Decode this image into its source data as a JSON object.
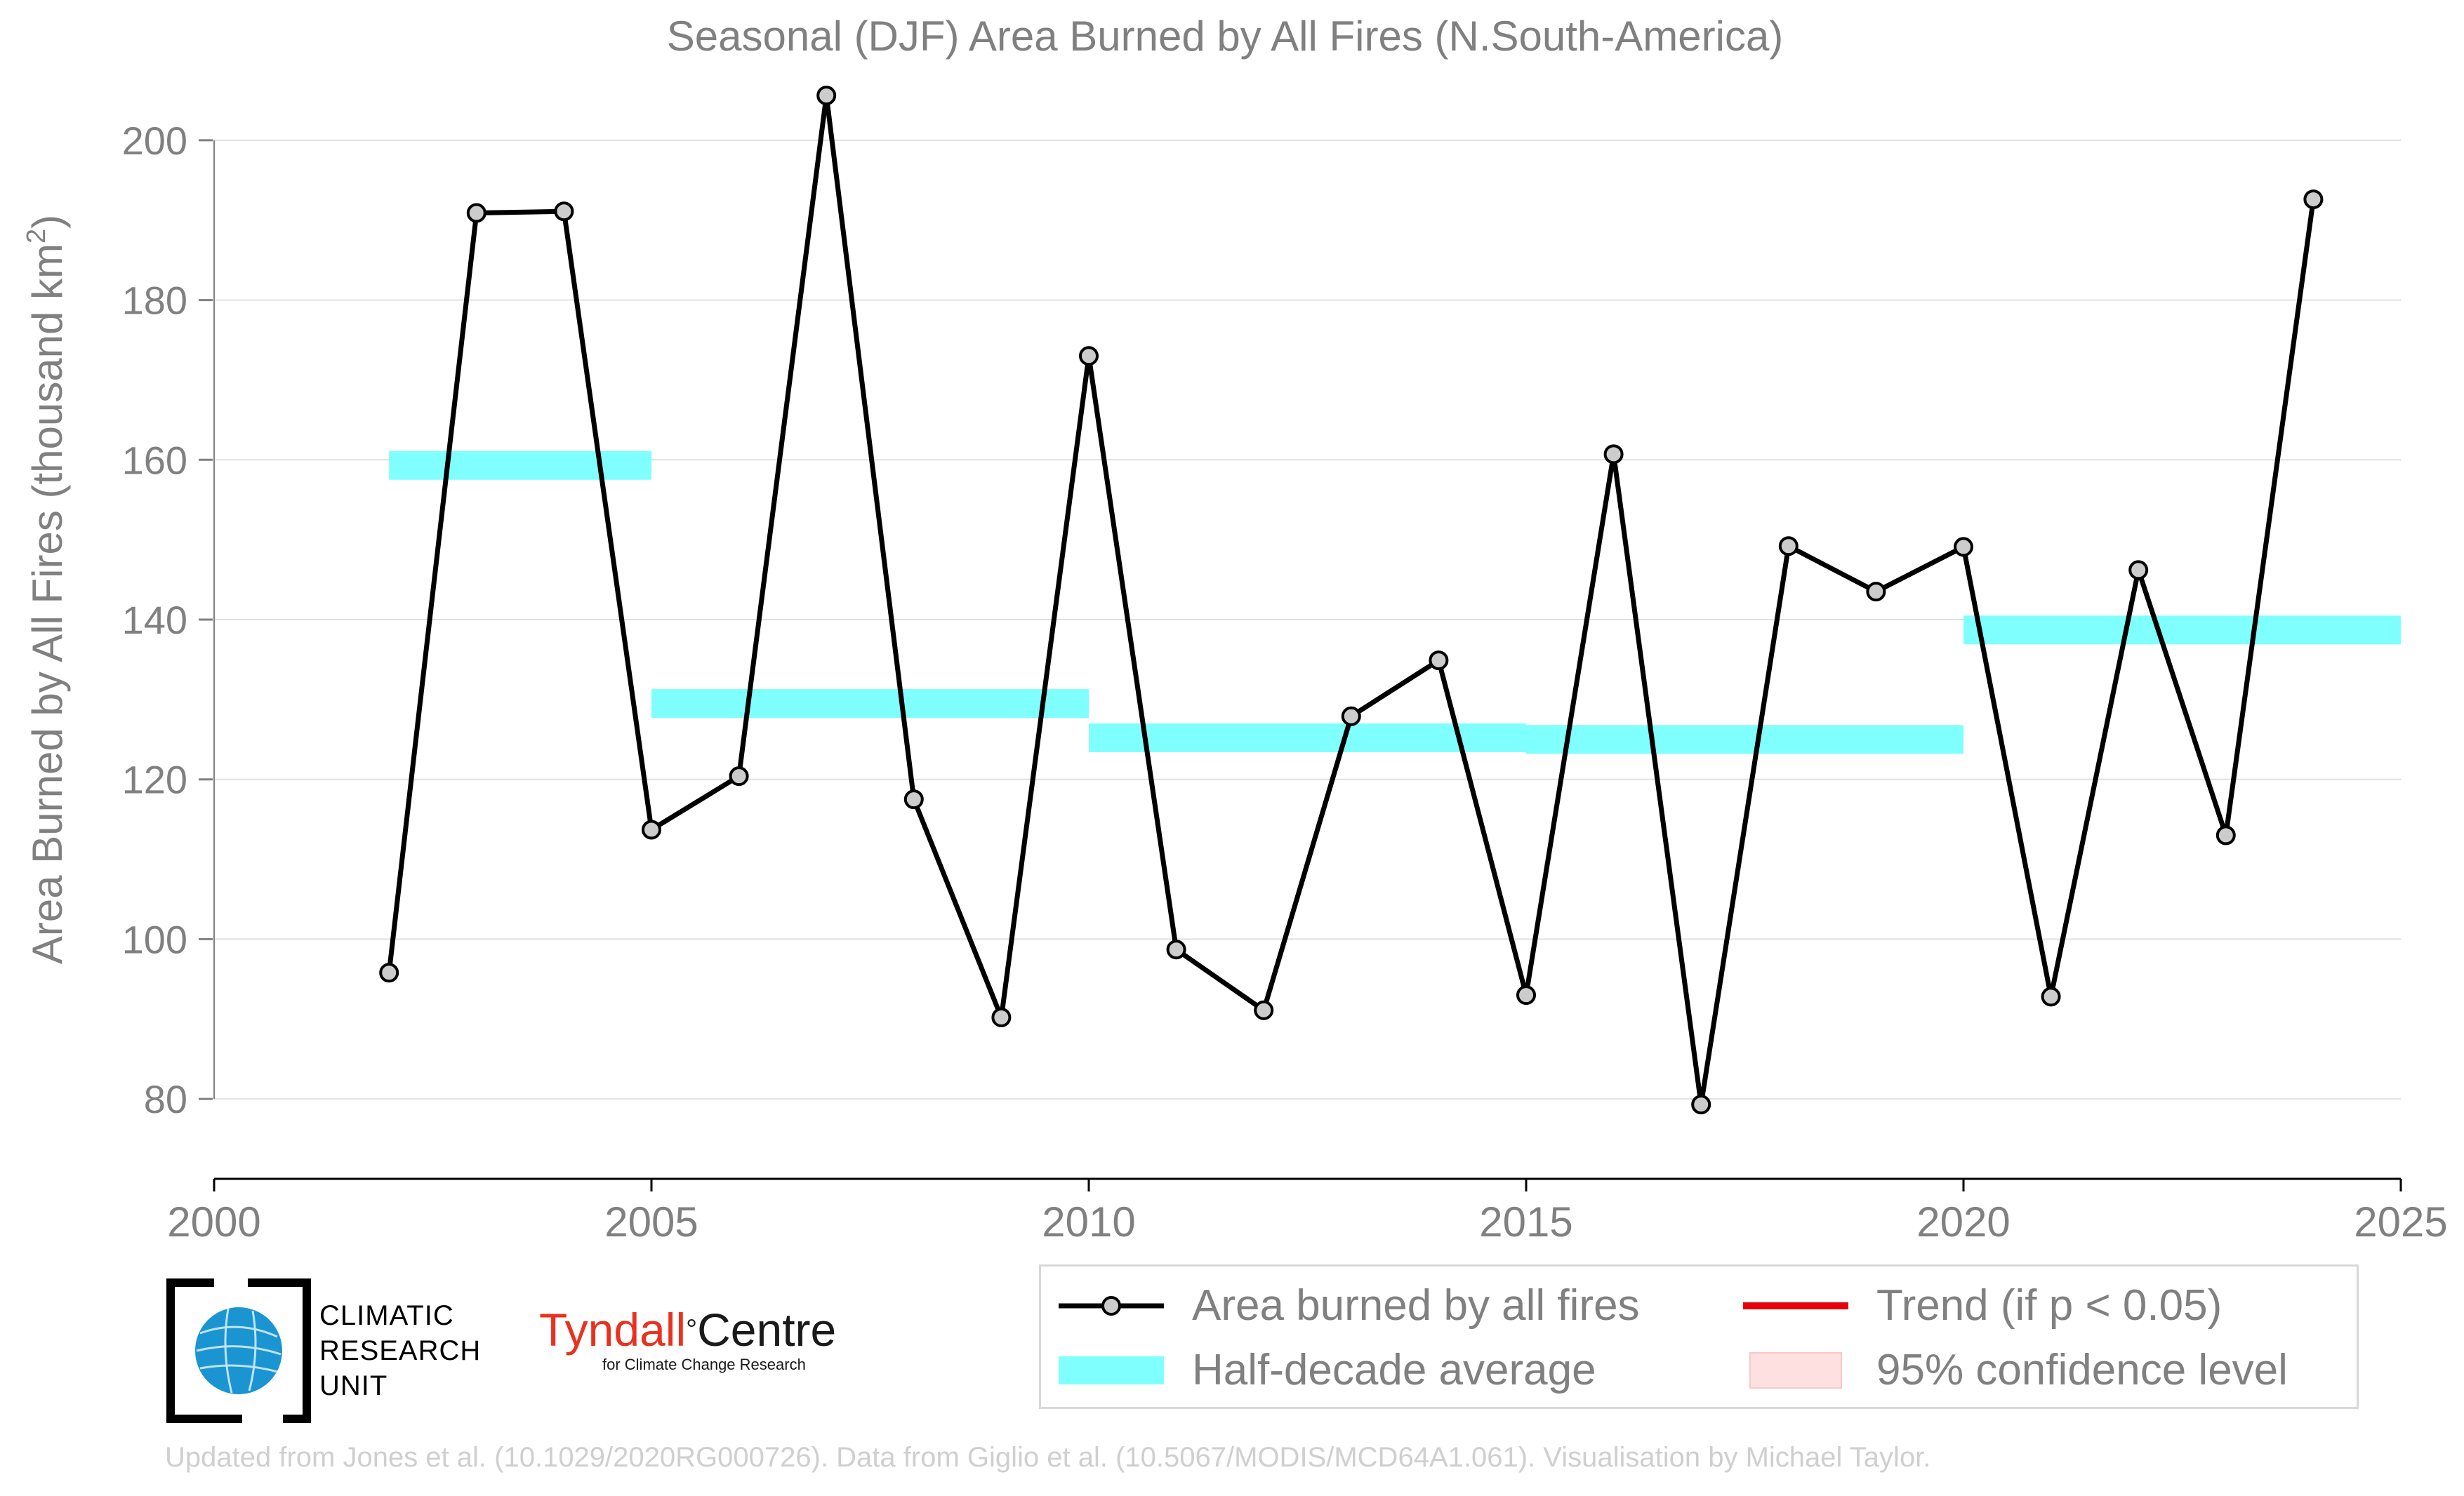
{
  "chart_data": {
    "type": "line",
    "title": "Seasonal (DJF) Area Burned by All Fires (N.South-America)",
    "ylabel": "Area Burned by All Fires (thousand km",
    "ylabel_sup": "2",
    "ylabel_close": ")",
    "xlim": [
      2000,
      2025
    ],
    "ylim": [
      70,
      210
    ],
    "xticks": [
      2000,
      2005,
      2010,
      2015,
      2020,
      2025
    ],
    "yticks": [
      80,
      100,
      120,
      140,
      160,
      180,
      200
    ],
    "grid": "horizontal",
    "series": [
      {
        "name": "Area burned by all fires",
        "color": "#000000",
        "marker_fill": "#cccccc",
        "x": [
          2002,
          2003,
          2004,
          2005,
          2006,
          2007,
          2008,
          2009,
          2010,
          2011,
          2012,
          2013,
          2014,
          2015,
          2016,
          2017,
          2018,
          2019,
          2020,
          2021,
          2022,
          2023,
          2024
        ],
        "y": [
          95.8,
          190.9,
          191.1,
          113.7,
          120.4,
          205.6,
          117.5,
          90.2,
          173.0,
          98.7,
          91.1,
          127.9,
          134.9,
          93.0,
          160.7,
          79.3,
          149.2,
          143.5,
          149.1,
          92.8,
          146.2,
          113.0,
          192.6
        ]
      }
    ],
    "half_decade": {
      "name": "Half-decade average",
      "color": "#80ffff",
      "segments": [
        {
          "x0": 2002,
          "x1": 2005,
          "y": 159.3
        },
        {
          "x0": 2005,
          "x1": 2010,
          "y": 129.5
        },
        {
          "x0": 2010,
          "x1": 2015,
          "y": 125.2
        },
        {
          "x0": 2015,
          "x1": 2020,
          "y": 125.0
        },
        {
          "x0": 2020,
          "x1": 2025,
          "y": 138.7
        }
      ]
    },
    "legend": {
      "placement": "bottom-right",
      "entries": [
        {
          "label": "Area burned by all fires"
        },
        {
          "label": "Trend (if p < 0.05)",
          "color": "#e8000b"
        },
        {
          "label": "Half-decade average"
        },
        {
          "label": "95% confidence level",
          "color": "#ffe0e0"
        }
      ]
    }
  },
  "logos": {
    "cru_lines": [
      "CLIMATIC",
      "RESEARCH",
      "UNIT"
    ],
    "tyndall_red": "Tyndall",
    "tyndall_deg": "°",
    "tyndall_black": "Centre",
    "tyndall_sub": "for Climate Change Research"
  },
  "footer": "Updated from Jones et al. (10.1029/2020RG000726). Data from Giglio et al. (10.5067/MODIS/MCD64A1.061). Visualisation by Michael Taylor."
}
